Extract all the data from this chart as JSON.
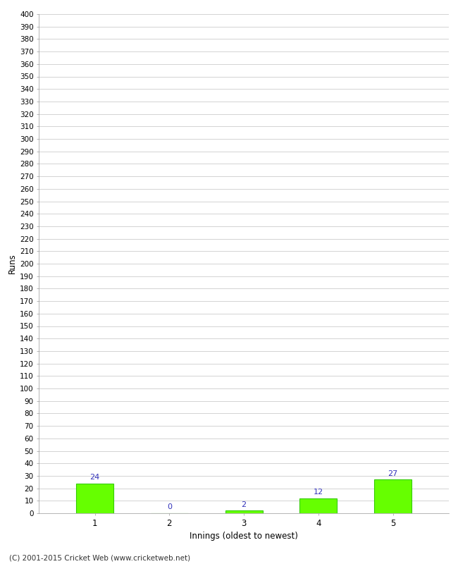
{
  "xlabel": "Innings (oldest to newest)",
  "ylabel": "Runs",
  "categories": [
    1,
    2,
    3,
    4,
    5
  ],
  "values": [
    24,
    0,
    2,
    12,
    27
  ],
  "bar_color": "#66ff00",
  "bar_edge_color": "#33cc00",
  "label_color": "#3333bb",
  "ylim": [
    0,
    400
  ],
  "ytick_step": 10,
  "background_color": "#ffffff",
  "grid_color": "#cccccc",
  "footer_text": "(C) 2001-2015 Cricket Web (www.cricketweb.net)",
  "bar_width": 0.5
}
